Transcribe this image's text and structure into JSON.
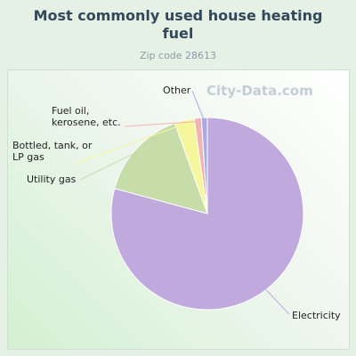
{
  "chart_data": {
    "type": "pie",
    "title": "Most commonly used house heating fuel",
    "subtitle": "Zip code 28613",
    "watermark": "City-Data.com",
    "categories": [
      "Electricity",
      "Utility gas",
      "Bottled, tank, or LP gas",
      "Fuel oil, kerosene, etc.",
      "Other"
    ],
    "values": [
      79.2,
      15.3,
      3.3,
      1.2,
      1.0
    ],
    "colors": [
      "#c0a9dc",
      "#c6dca9",
      "#f6f69c",
      "#f3b3b3",
      "#a9abe6"
    ]
  }
}
